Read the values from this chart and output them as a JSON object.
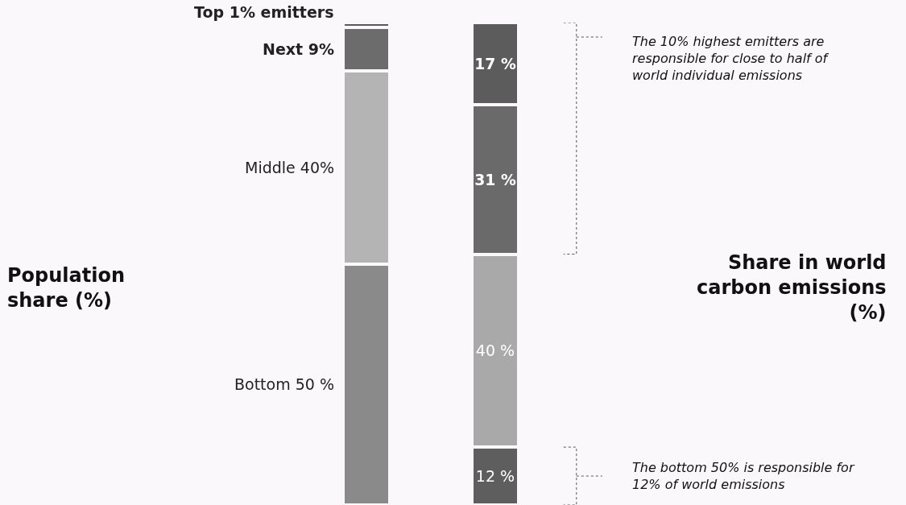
{
  "chart_data": {
    "type": "bar",
    "stacked": true,
    "legend": false,
    "categories": [
      null,
      null
    ],
    "series": [
      {
        "name": "Bottom 50 %",
        "colors": [
          "#8a8a8a",
          "#5e5e5e"
        ],
        "values": [
          50,
          12
        ],
        "value_labels": [
          null,
          "12 %"
        ]
      },
      {
        "name": "Middle 40%",
        "colors": [
          "#b4b4b4",
          "#a9a9a9"
        ],
        "values": [
          40,
          40
        ],
        "value_labels": [
          null,
          "40 %"
        ]
      },
      {
        "name": "Next 9%",
        "colors": [
          "#6c6c6c",
          "#6a6a6a"
        ],
        "values": [
          9,
          31
        ],
        "value_labels": [
          null,
          "31 %"
        ]
      },
      {
        "name": "Top 1% emitters",
        "colors": [
          "#5a5a5a",
          "#5c5c5c"
        ],
        "values": [
          1,
          17
        ],
        "value_labels": [
          null,
          "17 %"
        ]
      }
    ],
    "annotations": [
      "Population\nshare (%)",
      "Share in world\ncarbon emissions\n(%)",
      "The 10% highest emitters are\nresponsible for close to half of\nworld individual emissions",
      "The bottom 50% is responsible for\n12% of world emissions"
    ]
  }
}
